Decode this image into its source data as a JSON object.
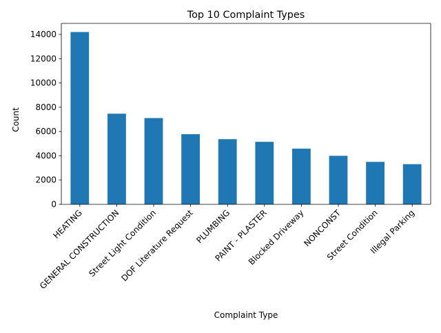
{
  "chart_data": {
    "type": "bar",
    "title": "Top 10 Complaint Types",
    "xlabel": "Complaint Type",
    "ylabel": "Count",
    "categories": [
      "HEATING",
      "GENERAL CONSTRUCTION",
      "Street Light Condition",
      "DOF Literature Request",
      "PLUMBING",
      "PAINT - PLASTER",
      "Blocked Driveway",
      "NONCONST",
      "Street Condition",
      "Illegal Parking"
    ],
    "values": [
      14200,
      7470,
      7110,
      5780,
      5370,
      5150,
      4590,
      4000,
      3500,
      3310
    ],
    "yticks": [
      0,
      2000,
      4000,
      6000,
      8000,
      10000,
      12000,
      14000
    ],
    "ylim": [
      0,
      14910
    ],
    "bar_color": "#1f77b4",
    "grid": false,
    "legend": "none"
  }
}
